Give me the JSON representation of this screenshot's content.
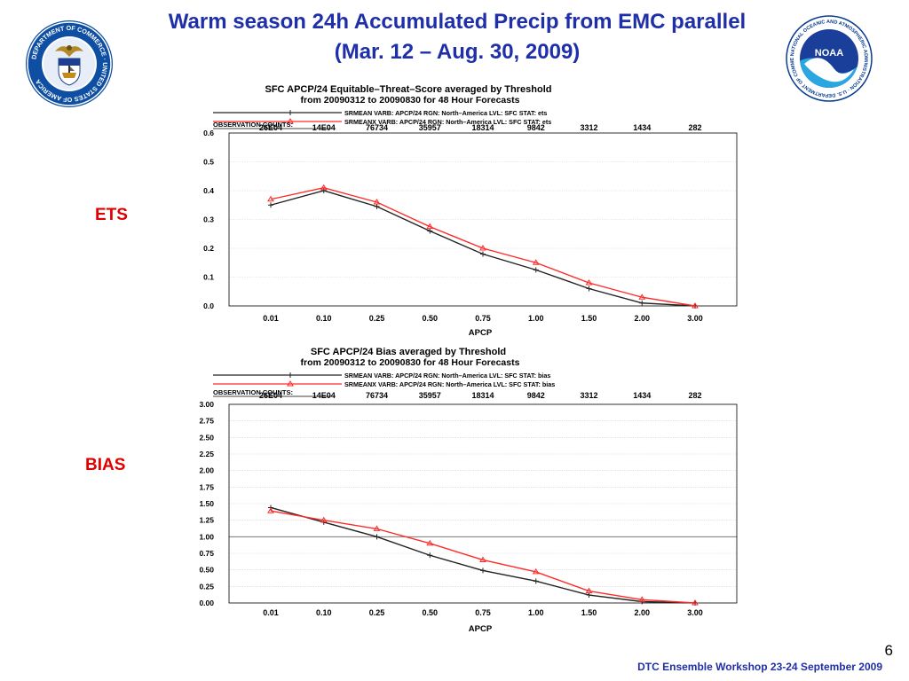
{
  "slide": {
    "title_line1": "Warm season 24h Accumulated Precip from EMC parallel",
    "title_line2": "(Mar. 12 – Aug. 30, 2009)",
    "page_number": "6",
    "footer": "DTC Ensemble Workshop 23-24 September 2009",
    "ets_label": "ETS",
    "bias_label": "BIAS",
    "title_color": "#1f2fa8",
    "label_color": "#e00000",
    "logos": {
      "left": {
        "icon": "department-of-commerce-seal-icon",
        "text": "DEPARTMENT OF COMMERCE · UNITED STATES OF AMERICA"
      },
      "right": {
        "icon": "noaa-logo-icon",
        "center_text": "NOAA",
        "ring_text": "NATIONAL OCEANIC AND ATMOSPHERIC ADMINISTRATION · U.S. DEPARTMENT OF COMMERCE"
      }
    }
  },
  "chart_data": [
    {
      "type": "line",
      "title": "SFC APCP/24 Equitable–Threat–Score averaged by Threshold",
      "subtitle": "from 20090312 to 20090830 for 48 Hour Forecasts",
      "xlabel": "APCP",
      "ylabel": "",
      "categories": [
        "0.01",
        "0.10",
        "0.25",
        "0.50",
        "0.75",
        "1.00",
        "1.50",
        "2.00",
        "3.00"
      ],
      "observation_counts_label": "OBSERVATION COUNTS:",
      "observation_counts": [
        "26E04",
        "14E04",
        "76734",
        "35957",
        "18314",
        "9842",
        "3312",
        "1434",
        "282"
      ],
      "ylim": [
        0,
        0.6
      ],
      "yticks": [
        "0.0",
        "0.1",
        "0.2",
        "0.3",
        "0.4",
        "0.5",
        "0.6"
      ],
      "ytick_values": [
        0,
        0.1,
        0.2,
        0.3,
        0.4,
        0.5,
        0.6
      ],
      "grid": true,
      "legend_position": "top",
      "series": [
        {
          "name": "SRMEAN VARB: APCP/24  RGN: North–America  LVL: SFC  STAT: ets",
          "color": "#222222",
          "marker": "plus",
          "values": [
            0.35,
            0.4,
            0.345,
            0.26,
            0.18,
            0.125,
            0.06,
            0.01,
            0.0
          ]
        },
        {
          "name": "SRMEANX VARB: APCP/24  RGN: North–America  LVL: SFC  STAT: ets",
          "color": "#ff2a2a",
          "marker": "triangle",
          "values": [
            0.37,
            0.41,
            0.36,
            0.275,
            0.2,
            0.15,
            0.08,
            0.03,
            0.0
          ]
        }
      ]
    },
    {
      "type": "line",
      "title": "SFC APCP/24 Bias averaged by Threshold",
      "subtitle": "from 20090312 to 20090830 for 48 Hour Forecasts",
      "xlabel": "APCP",
      "ylabel": "",
      "categories": [
        "0.01",
        "0.10",
        "0.25",
        "0.50",
        "0.75",
        "1.00",
        "1.50",
        "2.00",
        "3.00"
      ],
      "observation_counts_label": "OBSERVATION COUNTS:",
      "observation_counts": [
        "26E04",
        "14E04",
        "76734",
        "35957",
        "18314",
        "9842",
        "3312",
        "1434",
        "282"
      ],
      "ylim": [
        0,
        3.0
      ],
      "yticks": [
        "0.00",
        "0.25",
        "0.50",
        "0.75",
        "1.00",
        "1.25",
        "1.50",
        "1.75",
        "2.00",
        "2.25",
        "2.50",
        "2.75",
        "3.00"
      ],
      "ytick_values": [
        0,
        0.25,
        0.5,
        0.75,
        1.0,
        1.25,
        1.5,
        1.75,
        2.0,
        2.25,
        2.5,
        2.75,
        3.0
      ],
      "grid": true,
      "reference_line": 1.0,
      "legend_position": "top",
      "series": [
        {
          "name": "SRMEAN VARB: APCP/24  RGN: North–America  LVL: SFC  STAT: bias",
          "color": "#222222",
          "marker": "plus",
          "values": [
            1.44,
            1.22,
            1.0,
            0.72,
            0.49,
            0.33,
            0.12,
            0.02,
            0.0
          ]
        },
        {
          "name": "SRMEANX VARB: APCP/24  RGN: North–America  LVL: SFC  STAT: bias",
          "color": "#ff2a2a",
          "marker": "triangle",
          "values": [
            1.39,
            1.25,
            1.12,
            0.9,
            0.65,
            0.47,
            0.18,
            0.05,
            0.0
          ]
        }
      ]
    }
  ]
}
